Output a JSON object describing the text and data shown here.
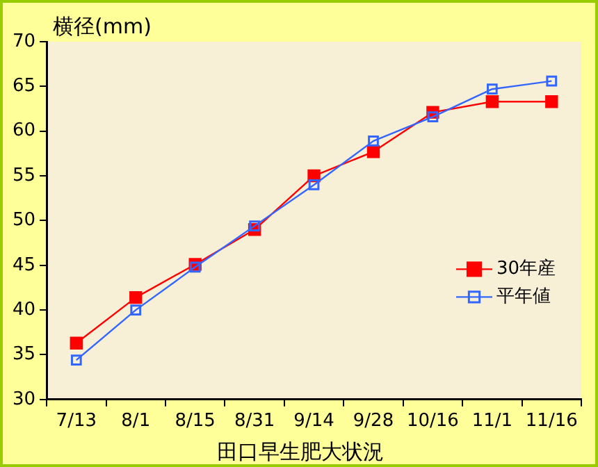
{
  "chart_data": {
    "type": "line",
    "xlabel": "田口早生肥大状況",
    "ylabel": "横径(mm)",
    "categories": [
      "7/13",
      "8/1",
      "8/15",
      "8/31",
      "9/14",
      "9/28",
      "10/16",
      "11/1",
      "11/16"
    ],
    "series": [
      {
        "name": "30年産",
        "color": "#ff0000",
        "marker": "square",
        "values": [
          36.3,
          41.4,
          45.1,
          49.0,
          55.0,
          57.7,
          62.1,
          63.3,
          63.3
        ]
      },
      {
        "name": "平年値",
        "color": "#3366ff",
        "marker": "square",
        "values": [
          34.4,
          40.0,
          44.8,
          49.4,
          54.0,
          58.9,
          61.6,
          64.7,
          65.6
        ]
      }
    ],
    "ylim": [
      30,
      70
    ],
    "yticks": [
      30,
      35,
      40,
      45,
      50,
      55,
      60,
      65,
      70
    ],
    "grid": false,
    "legend": "right"
  }
}
